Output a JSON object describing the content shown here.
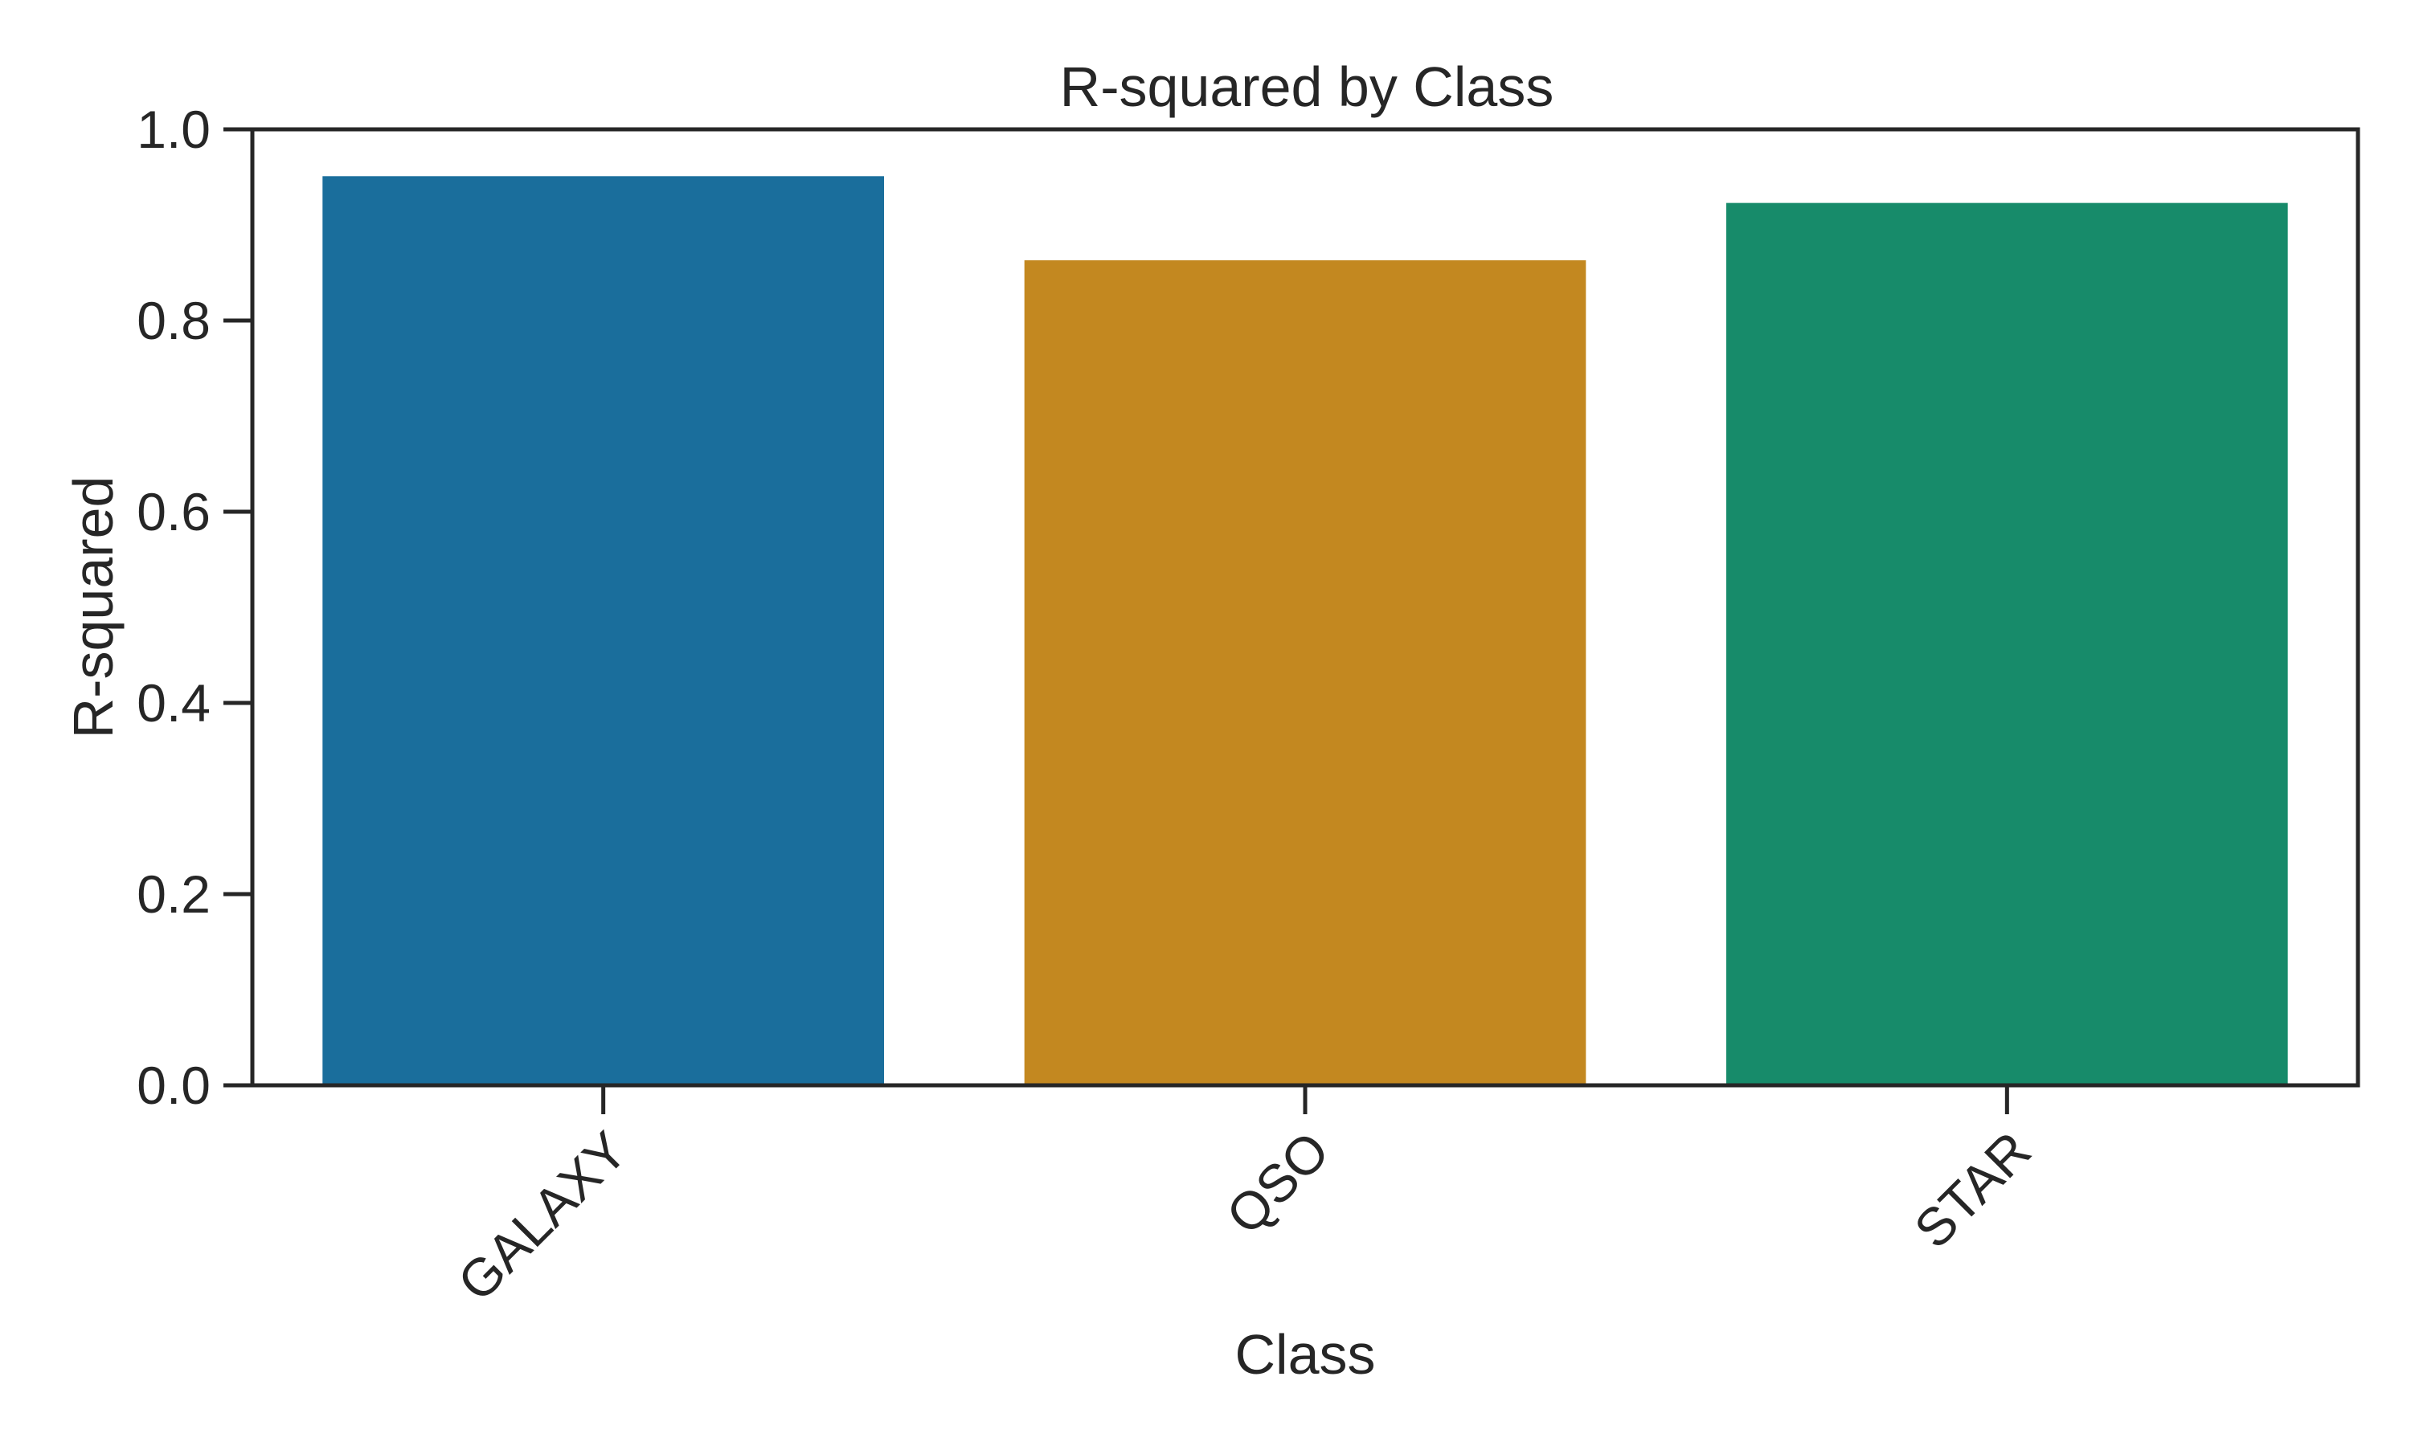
{
  "chart_data": {
    "type": "bar",
    "title": "R-squared by Class",
    "xlabel": "Class",
    "ylabel": "R-squared",
    "categories": [
      "GALAXY",
      "QSO",
      "STAR"
    ],
    "values": [
      0.951,
      0.863,
      0.923
    ],
    "colors": [
      "#1a6e9c",
      "#c38820",
      "#178b6a"
    ],
    "ylim": [
      0,
      1
    ],
    "yticks": [
      0.0,
      0.2,
      0.4,
      0.6,
      0.8,
      1.0
    ],
    "ytick_labels": [
      "0.0",
      "0.2",
      "0.4",
      "0.6",
      "0.8",
      "1.0"
    ],
    "grid": false,
    "legend": "none"
  }
}
